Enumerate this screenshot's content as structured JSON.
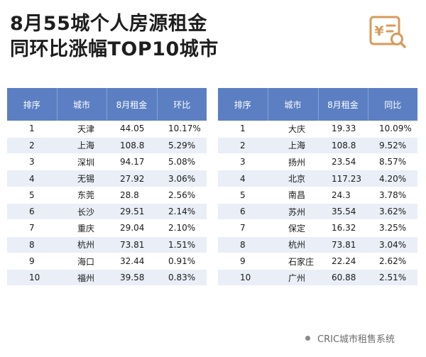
{
  "title": {
    "line1": "8月55城个人房源租金",
    "line2": "同环比涨幅TOP10城市"
  },
  "logo": {
    "icon": "price-tag-search-icon",
    "symbol": "¥",
    "color": "#d89a5a"
  },
  "colors": {
    "header": "#5b7fc2",
    "stripe": "#e9eef7"
  },
  "mom_table": {
    "headers": [
      "排序",
      "城市",
      "8月租金",
      "环比"
    ],
    "rows": [
      [
        "1",
        "天津",
        "44.05",
        "10.17%"
      ],
      [
        "2",
        "上海",
        "108.8",
        "5.29%"
      ],
      [
        "3",
        "深圳",
        "94.17",
        "5.08%"
      ],
      [
        "4",
        "无锡",
        "27.92",
        "3.06%"
      ],
      [
        "5",
        "东莞",
        "28.8",
        "2.56%"
      ],
      [
        "6",
        "长沙",
        "29.51",
        "2.14%"
      ],
      [
        "7",
        "重庆",
        "29.04",
        "2.10%"
      ],
      [
        "8",
        "杭州",
        "73.81",
        "1.51%"
      ],
      [
        "9",
        "海口",
        "32.44",
        "0.91%"
      ],
      [
        "10",
        "福州",
        "39.58",
        "0.83%"
      ]
    ]
  },
  "yoy_table": {
    "headers": [
      "排序",
      "城市",
      "8月租金",
      "同比"
    ],
    "rows": [
      [
        "1",
        "大庆",
        "19.33",
        "10.09%"
      ],
      [
        "2",
        "上海",
        "108.8",
        "9.52%"
      ],
      [
        "3",
        "扬州",
        "23.54",
        "8.57%"
      ],
      [
        "4",
        "北京",
        "117.23",
        "4.20%"
      ],
      [
        "5",
        "南昌",
        "24.3",
        "3.78%"
      ],
      [
        "6",
        "苏州",
        "35.54",
        "3.62%"
      ],
      [
        "7",
        "保定",
        "16.32",
        "3.25%"
      ],
      [
        "8",
        "杭州",
        "73.81",
        "3.04%"
      ],
      [
        "9",
        "石家庄",
        "22.24",
        "2.62%"
      ],
      [
        "10",
        "广州",
        "60.88",
        "2.51%"
      ]
    ]
  },
  "footer": {
    "source": "CRIC城市租售系统"
  }
}
